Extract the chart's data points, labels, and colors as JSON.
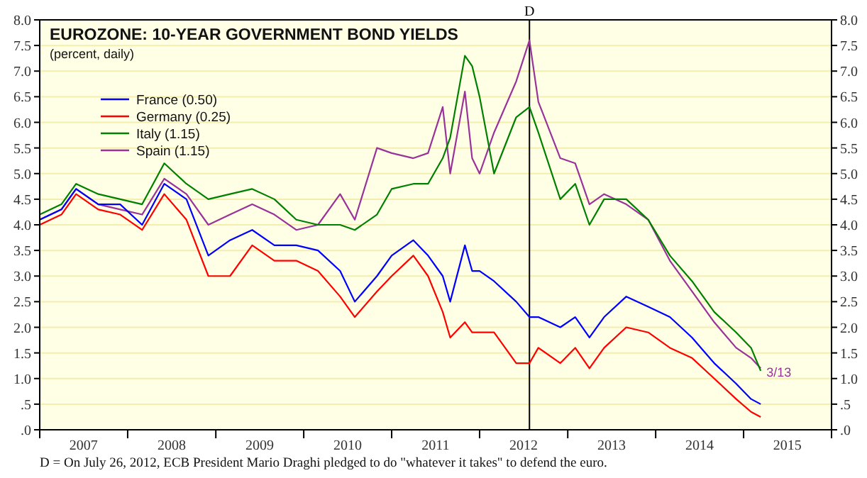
{
  "chart_data": {
    "type": "line",
    "title": "EUROZONE: 10-YEAR GOVERNMENT BOND YIELDS",
    "subtitle": "(percent, daily)",
    "x": [
      "2007-01",
      "2007-04",
      "2007-06",
      "2007-09",
      "2007-12",
      "2008-03",
      "2008-06",
      "2008-09",
      "2008-12",
      "2009-03",
      "2009-06",
      "2009-09",
      "2009-12",
      "2010-03",
      "2010-06",
      "2010-08",
      "2010-11",
      "2011-01",
      "2011-04",
      "2011-06",
      "2011-08",
      "2011-09",
      "2011-11",
      "2011-12",
      "2012-01",
      "2012-03",
      "2012-06",
      "2012-07-26",
      "2012-09",
      "2012-12",
      "2013-02",
      "2013-04",
      "2013-06",
      "2013-09",
      "2013-12",
      "2014-03",
      "2014-06",
      "2014-09",
      "2014-12",
      "2015-02",
      "2015-03-13"
    ],
    "series": [
      {
        "name": "France (0.50)",
        "color": "#0000ff",
        "values": [
          4.1,
          4.3,
          4.7,
          4.4,
          4.4,
          4.0,
          4.8,
          4.5,
          3.4,
          3.7,
          3.9,
          3.6,
          3.6,
          3.5,
          3.1,
          2.5,
          3.0,
          3.4,
          3.7,
          3.4,
          3.0,
          2.5,
          3.6,
          3.1,
          3.1,
          2.9,
          2.5,
          2.2,
          2.2,
          2.0,
          2.2,
          1.8,
          2.2,
          2.6,
          2.4,
          2.2,
          1.8,
          1.3,
          0.9,
          0.6,
          0.5
        ]
      },
      {
        "name": "Germany (0.25)",
        "color": "#ff0000",
        "values": [
          4.0,
          4.2,
          4.6,
          4.3,
          4.2,
          3.9,
          4.6,
          4.1,
          3.0,
          3.0,
          3.6,
          3.3,
          3.3,
          3.1,
          2.6,
          2.2,
          2.7,
          3.0,
          3.4,
          3.0,
          2.3,
          1.8,
          2.1,
          1.9,
          1.9,
          1.9,
          1.3,
          1.3,
          1.6,
          1.3,
          1.6,
          1.2,
          1.6,
          2.0,
          1.9,
          1.6,
          1.4,
          1.0,
          0.6,
          0.35,
          0.25
        ]
      },
      {
        "name": "Italy (1.15)",
        "color": "#008000",
        "values": [
          4.2,
          4.4,
          4.8,
          4.6,
          4.5,
          4.4,
          5.2,
          4.8,
          4.5,
          4.6,
          4.7,
          4.5,
          4.1,
          4.0,
          4.0,
          3.9,
          4.2,
          4.7,
          4.8,
          4.8,
          5.3,
          5.7,
          7.3,
          7.1,
          6.5,
          5.0,
          6.1,
          6.3,
          5.8,
          4.5,
          4.8,
          4.0,
          4.5,
          4.5,
          4.1,
          3.4,
          2.9,
          2.3,
          1.9,
          1.6,
          1.15
        ]
      },
      {
        "name": "Spain (1.15)",
        "color": "#993399",
        "values": [
          4.1,
          4.3,
          4.7,
          4.4,
          4.3,
          4.2,
          4.9,
          4.6,
          4.0,
          4.2,
          4.4,
          4.2,
          3.9,
          4.0,
          4.6,
          4.1,
          5.5,
          5.4,
          5.3,
          5.4,
          6.3,
          5.0,
          6.6,
          5.3,
          5.0,
          5.8,
          6.8,
          7.6,
          6.4,
          5.3,
          5.2,
          4.4,
          4.6,
          4.4,
          4.1,
          3.3,
          2.7,
          2.1,
          1.6,
          1.4,
          1.2
        ]
      }
    ],
    "xlim": [
      "2007-01-01",
      "2016-01-01"
    ],
    "xticks": [
      {
        "value": "2007-01-01",
        "label": null
      },
      {
        "value": "2007-07-02",
        "label": "2007"
      },
      {
        "value": "2008-01-01",
        "label": null
      },
      {
        "value": "2008-07-02",
        "label": "2008"
      },
      {
        "value": "2009-01-01",
        "label": null
      },
      {
        "value": "2009-07-02",
        "label": "2009"
      },
      {
        "value": "2010-01-01",
        "label": null
      },
      {
        "value": "2010-07-02",
        "label": "2010"
      },
      {
        "value": "2011-01-01",
        "label": null
      },
      {
        "value": "2011-07-02",
        "label": "2011"
      },
      {
        "value": "2012-01-01",
        "label": null
      },
      {
        "value": "2012-07-02",
        "label": "2012"
      },
      {
        "value": "2013-01-01",
        "label": null
      },
      {
        "value": "2013-07-02",
        "label": "2013"
      },
      {
        "value": "2014-01-01",
        "label": null
      },
      {
        "value": "2014-07-02",
        "label": "2014"
      },
      {
        "value": "2015-01-01",
        "label": null
      },
      {
        "value": "2015-07-02",
        "label": "2015"
      },
      {
        "value": "2016-01-01",
        "label": null
      }
    ],
    "ylim": [
      0,
      8
    ],
    "yticks": [
      {
        "value": 0,
        "label": ".0"
      },
      {
        "value": 0.5,
        "label": ".5"
      },
      {
        "value": 1,
        "label": "1.0"
      },
      {
        "value": 1.5,
        "label": "1.5"
      },
      {
        "value": 2,
        "label": "2.0"
      },
      {
        "value": 2.5,
        "label": "2.5"
      },
      {
        "value": 3,
        "label": "3.0"
      },
      {
        "value": 3.5,
        "label": "3.5"
      },
      {
        "value": 4,
        "label": "4.0"
      },
      {
        "value": 4.5,
        "label": "4.5"
      },
      {
        "value": 5,
        "label": "5.0"
      },
      {
        "value": 5.5,
        "label": "5.5"
      },
      {
        "value": 6,
        "label": "6.0"
      },
      {
        "value": 6.5,
        "label": "6.5"
      },
      {
        "value": 7,
        "label": "7.0"
      },
      {
        "value": 7.5,
        "label": "7.5"
      },
      {
        "value": 8,
        "label": "8.0"
      }
    ],
    "y2lim": [
      0,
      8
    ],
    "y2ticks": [
      {
        "value": 0,
        "label": ".0"
      },
      {
        "value": 0.5,
        "label": ".5"
      },
      {
        "value": 1,
        "label": "1.0"
      },
      {
        "value": 1.5,
        "label": "1.5"
      },
      {
        "value": 2,
        "label": "2.0"
      },
      {
        "value": 2.5,
        "label": "2.5"
      },
      {
        "value": 3,
        "label": "3.0"
      },
      {
        "value": 3.5,
        "label": "3.5"
      },
      {
        "value": 4,
        "label": "4.0"
      },
      {
        "value": 4.5,
        "label": "4.5"
      },
      {
        "value": 5,
        "label": "5.0"
      },
      {
        "value": 5.5,
        "label": "5.5"
      },
      {
        "value": 6,
        "label": "6.0"
      },
      {
        "value": 6.5,
        "label": "6.5"
      },
      {
        "value": 7,
        "label": "7.0"
      },
      {
        "value": 7.5,
        "label": "7.5"
      },
      {
        "value": 8,
        "label": "8.0"
      }
    ],
    "ref_lines": [
      {
        "axis": "x",
        "value": "2012-07-26",
        "label": "D",
        "color": "#000000"
      }
    ],
    "annotations": [
      {
        "text": "3/13",
        "x": "2015-03-13",
        "y": 1.15
      },
      "D = On July 26, 2012, ECB President Mario Draghi pledged to do \"whatever it takes\" to defend the euro."
    ],
    "legend": "top left",
    "grid": "y",
    "line_style": "solid",
    "marker": "none"
  }
}
